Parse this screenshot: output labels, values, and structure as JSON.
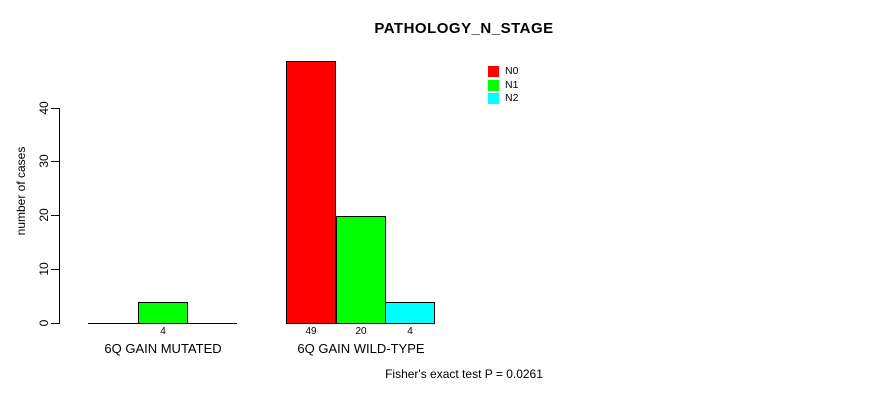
{
  "title": "PATHOLOGY_N_STAGE",
  "footer_note": "Fisher's exact test P = 0.0261",
  "chart_data": {
    "type": "bar",
    "title": "PATHOLOGY_N_STAGE",
    "xlabel": "",
    "ylabel": "number of cases",
    "ylim": [
      0,
      40
    ],
    "yticks": [
      0,
      10,
      20,
      30,
      40
    ],
    "grid": false,
    "legend_position": "top-right",
    "categories": [
      "6Q GAIN MUTATED",
      "6Q GAIN WILD-TYPE"
    ],
    "series": [
      {
        "name": "N0",
        "color": "#ff0000",
        "values": [
          0,
          49
        ]
      },
      {
        "name": "N1",
        "color": "#00ff00",
        "values": [
          4,
          20
        ]
      },
      {
        "name": "N2",
        "color": "#00ffff",
        "values": [
          0,
          4
        ]
      }
    ],
    "bar_value_labels": [
      {
        "category": "6Q GAIN MUTATED",
        "labels": [
          "",
          "4",
          ""
        ]
      },
      {
        "category": "6Q GAIN WILD-TYPE",
        "labels": [
          "49",
          "20",
          "4"
        ]
      }
    ],
    "annotation": "Fisher's exact test P = 0.0261",
    "colors": {
      "axis": "#000000",
      "background": "#ffffff",
      "bar_border": "#000000"
    }
  }
}
